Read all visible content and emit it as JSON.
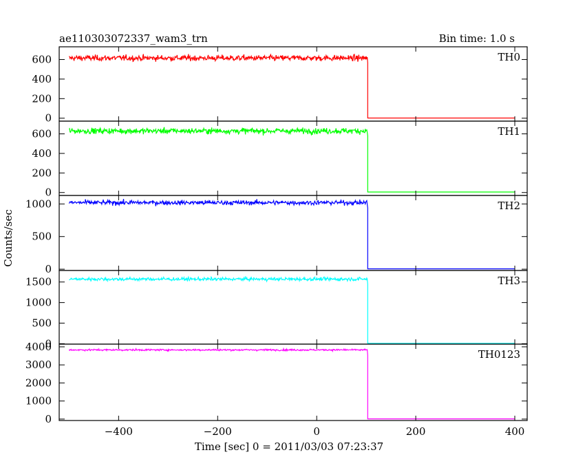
{
  "header": {
    "title": "ae110303072337_wam3_trn",
    "bin_time": "Bin time: 1.0 s"
  },
  "chart_data": {
    "type": "line",
    "title": "ae110303072337_wam3_trn",
    "subtitle": "Bin time: 1.0 s",
    "xlabel": "Time [sec] 0 = 2011/03/03 07:23:37",
    "ylabel": "Counts/sec",
    "xlim": [
      -520,
      425
    ],
    "x_ticks": [
      -400,
      -200,
      0,
      200,
      400
    ],
    "x_tick_labels": [
      "−400",
      "−200",
      "0",
      "200",
      "400"
    ],
    "drop_time": 103,
    "x_start": -500,
    "x_end": 400,
    "grid": false,
    "legend": "none",
    "panels": [
      {
        "name": "TH0",
        "color": "#ff0000",
        "ylim": [
          -30,
          730
        ],
        "y_ticks": [
          0,
          200,
          400,
          600
        ],
        "y_tick_labels": [
          "0",
          "200",
          "400",
          "600"
        ],
        "level_before": 615,
        "noise": 25,
        "level_after": 2
      },
      {
        "name": "TH1",
        "color": "#00ff00",
        "ylim": [
          -30,
          730
        ],
        "y_ticks": [
          0,
          200,
          400,
          600
        ],
        "y_tick_labels": [
          "0",
          "200",
          "400",
          "600"
        ],
        "level_before": 630,
        "noise": 25,
        "level_after": 5
      },
      {
        "name": "TH2",
        "color": "#0000ff",
        "ylim": [
          -20,
          1130
        ],
        "y_ticks": [
          0,
          500,
          1000
        ],
        "y_tick_labels": [
          "0",
          "500",
          "1000"
        ],
        "level_before": 1020,
        "noise": 30,
        "level_after": 5
      },
      {
        "name": "TH3",
        "color": "#00ffff",
        "ylim": [
          -10,
          1780
        ],
        "y_ticks": [
          0,
          500,
          1000,
          1500
        ],
        "y_tick_labels": [
          "0",
          "500",
          "1000",
          "1500"
        ],
        "level_before": 1570,
        "noise": 35,
        "level_after": 10
      },
      {
        "name": "TH0123",
        "color": "#ff00ff",
        "ylim": [
          -80,
          4150
        ],
        "y_ticks": [
          0,
          1000,
          2000,
          3000,
          4000
        ],
        "y_tick_labels": [
          "0",
          "1000",
          "2000",
          "3000",
          "4000"
        ],
        "level_before": 3830,
        "noise": 40,
        "level_after": 10
      }
    ]
  }
}
